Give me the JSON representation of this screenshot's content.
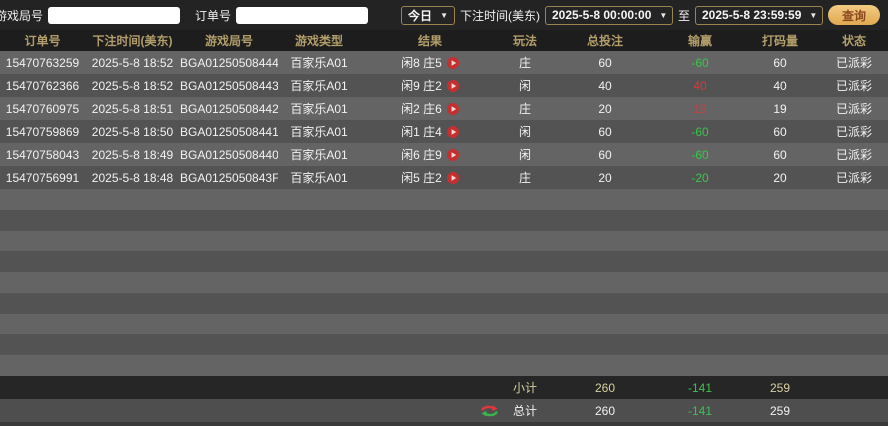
{
  "filters": {
    "game_round_label": "游戏局号",
    "order_no_label": "订单号",
    "range_selected": "今日",
    "bet_time_label": "下注时间(美东)",
    "date_from": "2025-5-8 00:00:00",
    "to_label": "至",
    "date_to": "2025-5-8 23:59:59",
    "query_button": "查询"
  },
  "table": {
    "headers": [
      "订单号",
      "下注时间(美东)",
      "游戏局号",
      "游戏类型",
      "结果",
      "玩法",
      "总投注",
      "输赢",
      "打码量",
      "状态"
    ],
    "rows": [
      {
        "order_no": "15470763259",
        "bet_time": "2025-5-8 18:52",
        "round_no": "BGA01250508444",
        "game_type": "百家乐A01",
        "result": "闲8 庄5",
        "play": "庄",
        "total_bet": "60",
        "win_loss": "-60",
        "win_loss_color": "loss",
        "turnover": "60",
        "status": "已派彩"
      },
      {
        "order_no": "15470762366",
        "bet_time": "2025-5-8 18:52",
        "round_no": "BGA01250508443",
        "game_type": "百家乐A01",
        "result": "闲9 庄2",
        "play": "闲",
        "total_bet": "40",
        "win_loss": "40",
        "win_loss_color": "win",
        "turnover": "40",
        "status": "已派彩"
      },
      {
        "order_no": "15470760975",
        "bet_time": "2025-5-8 18:51",
        "round_no": "BGA01250508442",
        "game_type": "百家乐A01",
        "result": "闲2 庄6",
        "play": "庄",
        "total_bet": "20",
        "win_loss": "19",
        "win_loss_color": "win",
        "turnover": "19",
        "status": "已派彩"
      },
      {
        "order_no": "15470759869",
        "bet_time": "2025-5-8 18:50",
        "round_no": "BGA01250508441",
        "game_type": "百家乐A01",
        "result": "闲1 庄4",
        "play": "闲",
        "total_bet": "60",
        "win_loss": "-60",
        "win_loss_color": "loss",
        "turnover": "60",
        "status": "已派彩"
      },
      {
        "order_no": "15470758043",
        "bet_time": "2025-5-8 18:49",
        "round_no": "BGA01250508440",
        "game_type": "百家乐A01",
        "result": "闲6 庄9",
        "play": "闲",
        "total_bet": "60",
        "win_loss": "-60",
        "win_loss_color": "loss",
        "turnover": "60",
        "status": "已派彩"
      },
      {
        "order_no": "15470756991",
        "bet_time": "2025-5-8 18:48",
        "round_no": "BGA0125050843F",
        "game_type": "百家乐A01",
        "result": "闲5 庄2",
        "play": "庄",
        "total_bet": "20",
        "win_loss": "-20",
        "win_loss_color": "loss",
        "turnover": "20",
        "status": "已派彩"
      }
    ],
    "subtotal": {
      "label": "小计",
      "total_bet": "260",
      "win_loss": "-141",
      "win_loss_color": "loss",
      "turnover": "259"
    },
    "total": {
      "label": "总计",
      "total_bet": "260",
      "win_loss": "-141",
      "win_loss_color": "loss",
      "turnover": "259"
    }
  },
  "colors": {
    "header_gold": "#b29e6a",
    "win_red": "#d03c3c",
    "loss_green": "#3dc24e",
    "button_gold": "#e9b967",
    "button_text": "#8c4a22",
    "row_light": "#646464",
    "row_dark": "#535353"
  }
}
